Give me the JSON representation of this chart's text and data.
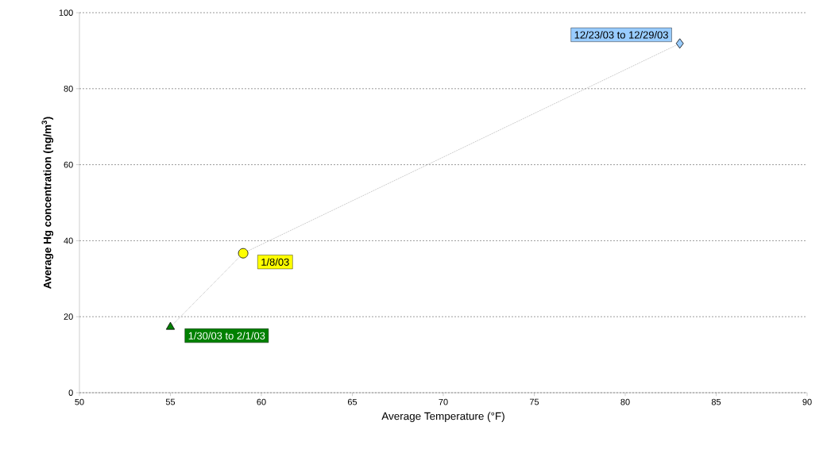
{
  "chart_data": {
    "type": "scatter",
    "xlabel": "Average Temperature (°F)",
    "ylabel": "Average Hg concentration (ng/m$^{3}$)",
    "xlim": [
      50,
      90
    ],
    "ylim": [
      0,
      100
    ],
    "xticks": [
      50,
      55,
      60,
      65,
      70,
      75,
      80,
      85,
      90
    ],
    "yticks": [
      0,
      20,
      40,
      60,
      80,
      100
    ],
    "grid": "y",
    "series": [
      {
        "type": "line",
        "color": "#a0a0a0",
        "x": [
          55,
          59,
          83
        ],
        "values": [
          17.3,
          36.7,
          91.9
        ],
        "marker": "none",
        "line_style": "dotted"
      },
      {
        "color": "#008000",
        "x": [
          55
        ],
        "values": [
          17.3
        ],
        "marker": "triangle"
      },
      {
        "color": "#ffff00",
        "x": [
          59
        ],
        "values": [
          36.7
        ],
        "marker": "circle"
      },
      {
        "color": "#99ccff",
        "x": [
          83
        ],
        "values": [
          91.9
        ],
        "marker": "diamond"
      }
    ],
    "annotations": [
      {
        "text": "1/30/03 to 2/1/03",
        "x": 55,
        "y": 17.3
      },
      {
        "text": "1/8/03",
        "x": 59,
        "y": 36.7
      },
      {
        "text": "12/23/03 to 12/29/03",
        "x": 83,
        "y": 91.9
      }
    ]
  }
}
